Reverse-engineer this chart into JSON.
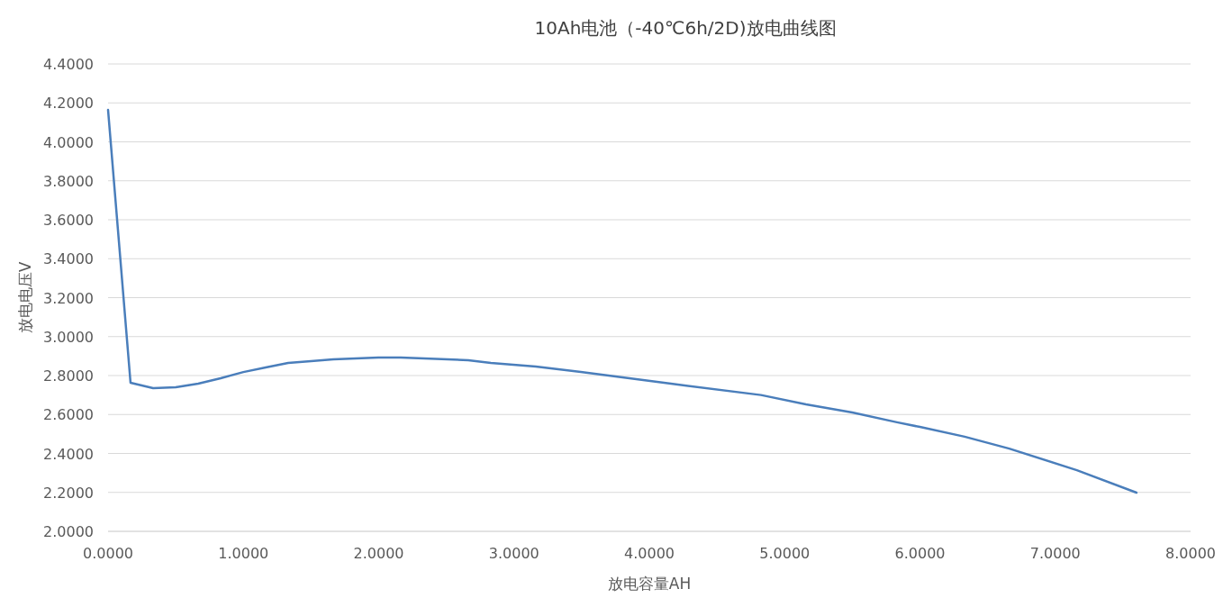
{
  "chart_data": {
    "type": "line",
    "title": "10Ah电池（-40℃6h/2D)放电曲线图",
    "xlabel": "放电容量AH",
    "ylabel": "放电电压V",
    "x": [
      0,
      0.166,
      0.333,
      0.5,
      0.666,
      0.832,
      1.0,
      1.165,
      1.331,
      1.5,
      1.664,
      1.997,
      2.163,
      2.662,
      2.829,
      3.161,
      3.494,
      4.16,
      4.825,
      5.158,
      5.5,
      5.83,
      6.0,
      6.33,
      6.66,
      7.16,
      7.6
    ],
    "values": [
      4.164,
      2.763,
      2.735,
      2.74,
      2.758,
      2.786,
      2.818,
      2.842,
      2.865,
      2.874,
      2.883,
      2.892,
      2.892,
      2.879,
      2.865,
      2.846,
      2.818,
      2.758,
      2.7,
      2.652,
      2.61,
      2.56,
      2.536,
      2.486,
      2.425,
      2.314,
      2.199
    ],
    "color": "#4a7ebb",
    "grid": "y",
    "marker": "none",
    "line_style": "solid",
    "xlim": [
      0,
      8
    ],
    "ylim": [
      2.0,
      4.4
    ],
    "xticks": [
      {
        "value": 0,
        "label": "0.0000"
      },
      {
        "value": 1,
        "label": "1.0000"
      },
      {
        "value": 2,
        "label": "2.0000"
      },
      {
        "value": 3,
        "label": "3.0000"
      },
      {
        "value": 4,
        "label": "4.0000"
      },
      {
        "value": 5,
        "label": "5.0000"
      },
      {
        "value": 6,
        "label": "6.0000"
      },
      {
        "value": 7,
        "label": "7.0000"
      },
      {
        "value": 8,
        "label": "8.0000"
      }
    ],
    "yticks": [
      {
        "value": 2.0,
        "label": "2.0000"
      },
      {
        "value": 2.2,
        "label": "2.2000"
      },
      {
        "value": 2.4,
        "label": "2.4000"
      },
      {
        "value": 2.6,
        "label": "2.6000"
      },
      {
        "value": 2.8,
        "label": "2.8000"
      },
      {
        "value": 3.0,
        "label": "3.0000"
      },
      {
        "value": 3.2,
        "label": "3.2000"
      },
      {
        "value": 3.4,
        "label": "3.4000"
      },
      {
        "value": 3.6,
        "label": "3.6000"
      },
      {
        "value": 3.8,
        "label": "3.8000"
      },
      {
        "value": 4.0,
        "label": "4.0000"
      },
      {
        "value": 4.2,
        "label": "4.2000"
      },
      {
        "value": 4.4,
        "label": "4.4000"
      }
    ]
  }
}
